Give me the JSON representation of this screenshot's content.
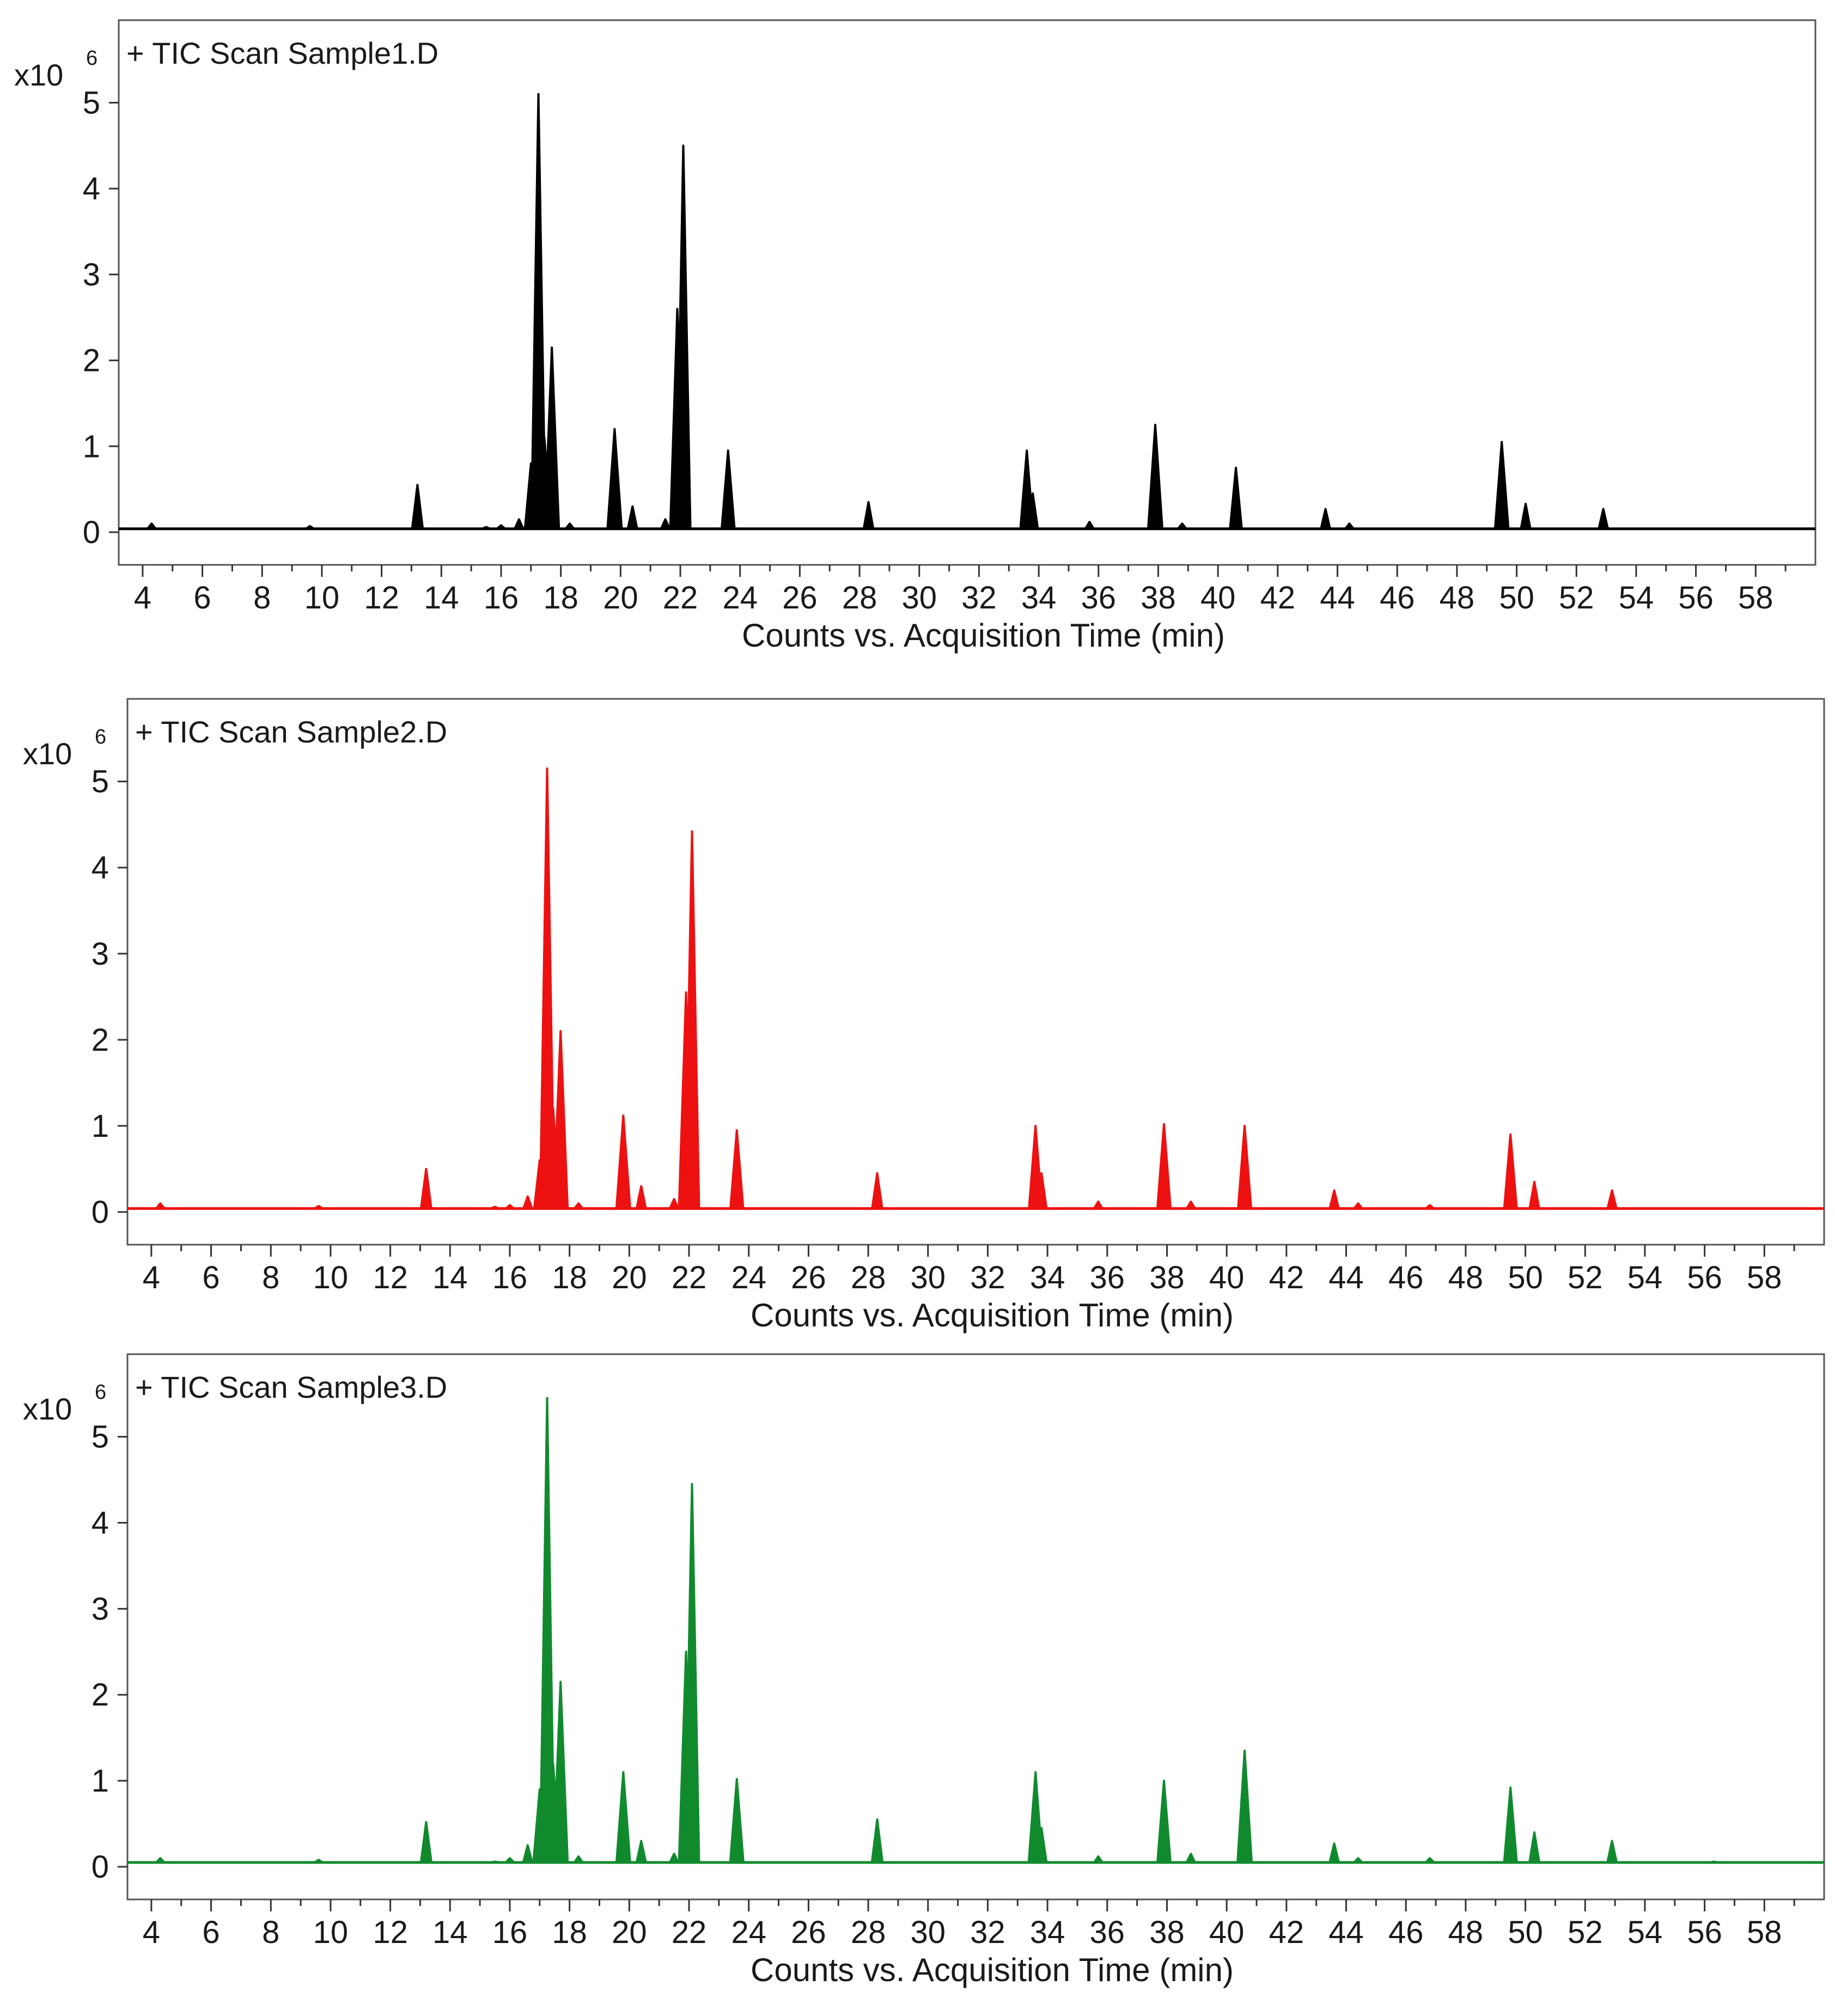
{
  "chart_data": [
    {
      "type": "line",
      "title": "+ TIC Scan Sample1.D",
      "xlabel": "Counts vs. Acquisition Time (min)",
      "y_scale_label": "x10",
      "y_scale_exponent": "6",
      "color": "#000000",
      "xlim": [
        3.2,
        60
      ],
      "ylim": [
        -0.1,
        6.4
      ],
      "xticks": [
        "4",
        "6",
        "8",
        "10",
        "12",
        "14",
        "16",
        "18",
        "20",
        "22",
        "24",
        "26",
        "28",
        "30",
        "32",
        "34",
        "36",
        "38",
        "40",
        "42",
        "44",
        "46",
        "48",
        "50",
        "52",
        "54",
        "56",
        "58"
      ],
      "yticks": [
        "0",
        "1",
        "2",
        "3",
        "4",
        "5"
      ],
      "baseline": 0.04,
      "peaks": [
        {
          "x": 4.3,
          "y": 0.1
        },
        {
          "x": 9.6,
          "y": 0.07
        },
        {
          "x": 13.2,
          "y": 0.55
        },
        {
          "x": 15.5,
          "y": 0.06
        },
        {
          "x": 16.0,
          "y": 0.08
        },
        {
          "x": 16.6,
          "y": 0.15
        },
        {
          "x": 17.0,
          "y": 0.8
        },
        {
          "x": 17.25,
          "y": 5.1
        },
        {
          "x": 17.45,
          "y": 1.1
        },
        {
          "x": 17.7,
          "y": 2.15
        },
        {
          "x": 18.3,
          "y": 0.1
        },
        {
          "x": 19.8,
          "y": 1.2
        },
        {
          "x": 20.4,
          "y": 0.3
        },
        {
          "x": 21.5,
          "y": 0.15
        },
        {
          "x": 21.9,
          "y": 2.6
        },
        {
          "x": 22.1,
          "y": 4.5
        },
        {
          "x": 23.6,
          "y": 0.95
        },
        {
          "x": 28.3,
          "y": 0.35
        },
        {
          "x": 33.6,
          "y": 0.95
        },
        {
          "x": 33.8,
          "y": 0.45
        },
        {
          "x": 35.7,
          "y": 0.12
        },
        {
          "x": 37.9,
          "y": 1.25
        },
        {
          "x": 38.8,
          "y": 0.1
        },
        {
          "x": 40.6,
          "y": 0.75
        },
        {
          "x": 43.6,
          "y": 0.27
        },
        {
          "x": 44.4,
          "y": 0.1
        },
        {
          "x": 49.5,
          "y": 1.05
        },
        {
          "x": 50.3,
          "y": 0.33
        },
        {
          "x": 52.9,
          "y": 0.27
        }
      ]
    },
    {
      "type": "line",
      "title": "+ TIC Scan Sample2.D",
      "xlabel": "Counts vs. Acquisition Time (min)",
      "y_scale_label": "x10",
      "y_scale_exponent": "6",
      "color": "#ee1111",
      "xlim": [
        3.2,
        60
      ],
      "ylim": [
        -0.1,
        6.4
      ],
      "xticks": [
        "4",
        "6",
        "8",
        "10",
        "12",
        "14",
        "16",
        "18",
        "20",
        "22",
        "24",
        "26",
        "28",
        "30",
        "32",
        "34",
        "36",
        "38",
        "40",
        "42",
        "44",
        "46",
        "48",
        "50",
        "52",
        "54",
        "56",
        "58"
      ],
      "yticks": [
        "0",
        "1",
        "2",
        "3",
        "4",
        "5"
      ],
      "baseline": 0.04,
      "peaks": [
        {
          "x": 4.3,
          "y": 0.1
        },
        {
          "x": 9.6,
          "y": 0.07
        },
        {
          "x": 13.2,
          "y": 0.5
        },
        {
          "x": 15.5,
          "y": 0.06
        },
        {
          "x": 16.0,
          "y": 0.08
        },
        {
          "x": 16.6,
          "y": 0.18
        },
        {
          "x": 17.0,
          "y": 0.6
        },
        {
          "x": 17.25,
          "y": 5.15
        },
        {
          "x": 17.45,
          "y": 1.2
        },
        {
          "x": 17.7,
          "y": 2.1
        },
        {
          "x": 18.3,
          "y": 0.1
        },
        {
          "x": 19.8,
          "y": 1.12
        },
        {
          "x": 20.4,
          "y": 0.3
        },
        {
          "x": 21.5,
          "y": 0.15
        },
        {
          "x": 21.9,
          "y": 2.55
        },
        {
          "x": 22.1,
          "y": 4.42
        },
        {
          "x": 23.6,
          "y": 0.95
        },
        {
          "x": 28.3,
          "y": 0.45
        },
        {
          "x": 33.6,
          "y": 1.0
        },
        {
          "x": 33.8,
          "y": 0.45
        },
        {
          "x": 35.7,
          "y": 0.12
        },
        {
          "x": 37.9,
          "y": 1.02
        },
        {
          "x": 38.8,
          "y": 0.12
        },
        {
          "x": 40.6,
          "y": 1.0
        },
        {
          "x": 43.6,
          "y": 0.25
        },
        {
          "x": 44.4,
          "y": 0.1
        },
        {
          "x": 46.8,
          "y": 0.08
        },
        {
          "x": 49.5,
          "y": 0.9
        },
        {
          "x": 50.3,
          "y": 0.35
        },
        {
          "x": 52.9,
          "y": 0.25
        }
      ]
    },
    {
      "type": "line",
      "title": "+ TIC Scan Sample3.D",
      "xlabel": "Counts vs. Acquisition Time (min)",
      "y_scale_label": "x10",
      "y_scale_exponent": "6",
      "color": "#118a2e",
      "xlim": [
        3.2,
        60
      ],
      "ylim": [
        -0.1,
        6.4
      ],
      "xticks": [
        "4",
        "6",
        "8",
        "10",
        "12",
        "14",
        "16",
        "18",
        "20",
        "22",
        "24",
        "26",
        "28",
        "30",
        "32",
        "34",
        "36",
        "38",
        "40",
        "42",
        "44",
        "46",
        "48",
        "50",
        "52",
        "54",
        "56",
        "58"
      ],
      "yticks": [
        "0",
        "1",
        "2",
        "3",
        "4",
        "5"
      ],
      "baseline": 0.05,
      "peaks": [
        {
          "x": 4.3,
          "y": 0.1
        },
        {
          "x": 9.6,
          "y": 0.08
        },
        {
          "x": 13.2,
          "y": 0.52
        },
        {
          "x": 15.5,
          "y": 0.06
        },
        {
          "x": 16.0,
          "y": 0.1
        },
        {
          "x": 16.6,
          "y": 0.25
        },
        {
          "x": 17.0,
          "y": 0.9
        },
        {
          "x": 17.25,
          "y": 5.45
        },
        {
          "x": 17.45,
          "y": 1.2
        },
        {
          "x": 17.7,
          "y": 2.15
        },
        {
          "x": 18.3,
          "y": 0.12
        },
        {
          "x": 19.8,
          "y": 1.1
        },
        {
          "x": 20.4,
          "y": 0.3
        },
        {
          "x": 21.5,
          "y": 0.15
        },
        {
          "x": 21.9,
          "y": 2.5
        },
        {
          "x": 22.1,
          "y": 4.45
        },
        {
          "x": 23.6,
          "y": 1.02
        },
        {
          "x": 28.3,
          "y": 0.55
        },
        {
          "x": 33.6,
          "y": 1.1
        },
        {
          "x": 33.8,
          "y": 0.45
        },
        {
          "x": 35.7,
          "y": 0.12
        },
        {
          "x": 37.9,
          "y": 1.0
        },
        {
          "x": 38.8,
          "y": 0.15
        },
        {
          "x": 40.6,
          "y": 1.35
        },
        {
          "x": 43.6,
          "y": 0.27
        },
        {
          "x": 44.4,
          "y": 0.1
        },
        {
          "x": 46.8,
          "y": 0.1
        },
        {
          "x": 49.5,
          "y": 0.92
        },
        {
          "x": 50.3,
          "y": 0.4
        },
        {
          "x": 52.9,
          "y": 0.3
        },
        {
          "x": 56.3,
          "y": 0.06
        }
      ]
    }
  ]
}
